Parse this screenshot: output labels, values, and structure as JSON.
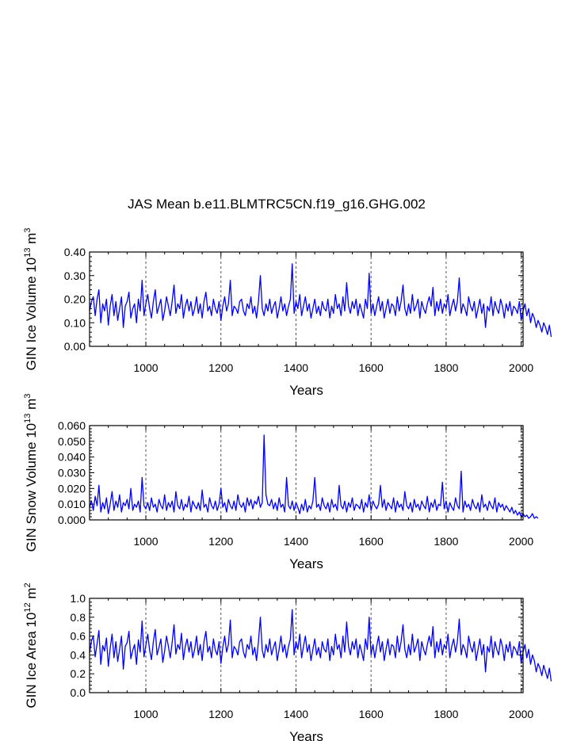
{
  "title": "JAS Mean b.e11.BLMTRC5CN.f19_g16.GHG.002",
  "chart_data": [
    {
      "type": "line",
      "title": "JAS Mean b.e11.BLMTRC5CN.f19_g16.GHG.002",
      "xlabel": "Years",
      "ylabel_main": "GIN Ice Volume 10",
      "ylabel_exp": "13",
      "ylabel_unit": " m",
      "ylabel_unit_exp": "3",
      "xlim": [
        850,
        2005
      ],
      "ylim": [
        0,
        0.4
      ],
      "x_ticks": [
        1000,
        1200,
        1400,
        1600,
        1800,
        2000
      ],
      "x_tick_labels": [
        "1000",
        "1200",
        "1400",
        "1600",
        "1800",
        "2000"
      ],
      "y_ticks": [
        0,
        0.1,
        0.2,
        0.3,
        0.4
      ],
      "y_tick_labels": [
        "0.00",
        "0.10",
        "0.20",
        "0.30",
        "0.40"
      ],
      "vlines": [
        1000,
        1200,
        1400,
        1600,
        1800,
        2000
      ],
      "color": "#0000ff",
      "series": [
        {
          "name": "GIN Ice Volume",
          "x_start": 850,
          "x_step": 5,
          "values": [
            0.15,
            0.19,
            0.21,
            0.13,
            0.2,
            0.24,
            0.1,
            0.18,
            0.15,
            0.2,
            0.09,
            0.17,
            0.22,
            0.13,
            0.19,
            0.11,
            0.16,
            0.21,
            0.08,
            0.17,
            0.19,
            0.23,
            0.12,
            0.16,
            0.18,
            0.1,
            0.2,
            0.15,
            0.28,
            0.13,
            0.18,
            0.22,
            0.16,
            0.12,
            0.19,
            0.24,
            0.14,
            0.17,
            0.2,
            0.11,
            0.15,
            0.21,
            0.17,
            0.13,
            0.19,
            0.26,
            0.14,
            0.18,
            0.16,
            0.22,
            0.12,
            0.17,
            0.2,
            0.15,
            0.19,
            0.13,
            0.16,
            0.21,
            0.14,
            0.18,
            0.12,
            0.19,
            0.23,
            0.15,
            0.17,
            0.13,
            0.2,
            0.16,
            0.14,
            0.19,
            0.11,
            0.17,
            0.21,
            0.15,
            0.18,
            0.28,
            0.13,
            0.17,
            0.16,
            0.14,
            0.19,
            0.2,
            0.15,
            0.13,
            0.18,
            0.16,
            0.21,
            0.14,
            0.17,
            0.12,
            0.19,
            0.3,
            0.16,
            0.13,
            0.18,
            0.15,
            0.2,
            0.14,
            0.17,
            0.19,
            0.12,
            0.16,
            0.21,
            0.15,
            0.18,
            0.13,
            0.17,
            0.2,
            0.35,
            0.14,
            0.19,
            0.16,
            0.22,
            0.13,
            0.17,
            0.21,
            0.15,
            0.18,
            0.12,
            0.16,
            0.2,
            0.14,
            0.17,
            0.13,
            0.19,
            0.16,
            0.15,
            0.2,
            0.12,
            0.17,
            0.14,
            0.22,
            0.16,
            0.18,
            0.13,
            0.21,
            0.15,
            0.27,
            0.17,
            0.14,
            0.19,
            0.16,
            0.2,
            0.13,
            0.18,
            0.15,
            0.12,
            0.2,
            0.16,
            0.31,
            0.14,
            0.18,
            0.13,
            0.17,
            0.21,
            0.15,
            0.19,
            0.12,
            0.16,
            0.2,
            0.14,
            0.18,
            0.17,
            0.13,
            0.21,
            0.15,
            0.19,
            0.26,
            0.16,
            0.13,
            0.18,
            0.14,
            0.22,
            0.15,
            0.17,
            0.2,
            0.12,
            0.19,
            0.16,
            0.14,
            0.18,
            0.21,
            0.17,
            0.25,
            0.13,
            0.19,
            0.15,
            0.2,
            0.14,
            0.18,
            0.16,
            0.22,
            0.13,
            0.17,
            0.2,
            0.15,
            0.19,
            0.29,
            0.14,
            0.18,
            0.16,
            0.13,
            0.21,
            0.17,
            0.15,
            0.19,
            0.12,
            0.16,
            0.2,
            0.14,
            0.18,
            0.08,
            0.17,
            0.15,
            0.21,
            0.13,
            0.19,
            0.16,
            0.14,
            0.2,
            0.17,
            0.12,
            0.18,
            0.15,
            0.19,
            0.13,
            0.17,
            0.16,
            0.14,
            0.19,
            0.11,
            0.15,
            0.18,
            0.13,
            0.16,
            0.1,
            0.14,
            0.12,
            0.08,
            0.11,
            0.09,
            0.06,
            0.1,
            0.08,
            0.05,
            0.09,
            0.04
          ]
        }
      ]
    },
    {
      "type": "line",
      "xlabel": "Years",
      "ylabel_main": "GIN Snow Volume 10",
      "ylabel_exp": "13",
      "ylabel_unit": " m",
      "ylabel_unit_exp": "3",
      "xlim": [
        850,
        2005
      ],
      "ylim": [
        0,
        0.06
      ],
      "x_ticks": [
        1000,
        1200,
        1400,
        1600,
        1800,
        2000
      ],
      "x_tick_labels": [
        "1000",
        "1200",
        "1400",
        "1600",
        "1800",
        "2000"
      ],
      "y_ticks": [
        0,
        0.01,
        0.02,
        0.03,
        0.04,
        0.05,
        0.06
      ],
      "y_tick_labels": [
        "0.000",
        "0.010",
        "0.020",
        "0.030",
        "0.040",
        "0.050",
        "0.060"
      ],
      "vlines": [
        1000,
        1200,
        1400,
        1600,
        1800,
        2000
      ],
      "color": "#0000ff",
      "series": [
        {
          "name": "GIN Snow Volume",
          "x_start": 850,
          "x_step": 5,
          "values": [
            0.008,
            0.012,
            0.006,
            0.015,
            0.009,
            0.022,
            0.005,
            0.011,
            0.007,
            0.014,
            0.004,
            0.01,
            0.018,
            0.006,
            0.012,
            0.008,
            0.016,
            0.005,
            0.011,
            0.009,
            0.013,
            0.007,
            0.02,
            0.006,
            0.01,
            0.008,
            0.012,
            0.005,
            0.027,
            0.009,
            0.007,
            0.011,
            0.006,
            0.014,
            0.008,
            0.01,
            0.005,
            0.013,
            0.009,
            0.007,
            0.016,
            0.006,
            0.011,
            0.008,
            0.012,
            0.005,
            0.018,
            0.009,
            0.007,
            0.013,
            0.006,
            0.01,
            0.008,
            0.015,
            0.005,
            0.012,
            0.009,
            0.007,
            0.011,
            0.006,
            0.019,
            0.008,
            0.01,
            0.005,
            0.014,
            0.009,
            0.007,
            0.012,
            0.006,
            0.01,
            0.02,
            0.008,
            0.011,
            0.005,
            0.013,
            0.009,
            0.007,
            0.012,
            0.006,
            0.016,
            0.01,
            0.008,
            0.011,
            0.005,
            0.014,
            0.009,
            0.013,
            0.007,
            0.012,
            0.01,
            0.015,
            0.008,
            0.011,
            0.054,
            0.016,
            0.01,
            0.009,
            0.013,
            0.007,
            0.011,
            0.006,
            0.014,
            0.008,
            0.01,
            0.005,
            0.027,
            0.009,
            0.007,
            0.012,
            0.006,
            0.011,
            0.008,
            0.004,
            0.01,
            0.006,
            0.013,
            0.005,
            0.009,
            0.007,
            0.012,
            0.027,
            0.008,
            0.01,
            0.006,
            0.014,
            0.009,
            0.007,
            0.011,
            0.005,
            0.013,
            0.008,
            0.01,
            0.006,
            0.022,
            0.009,
            0.007,
            0.012,
            0.005,
            0.011,
            0.008,
            0.014,
            0.006,
            0.01,
            0.009,
            0.007,
            0.013,
            0.005,
            0.011,
            0.008,
            0.016,
            0.006,
            0.012,
            0.009,
            0.007,
            0.01,
            0.022,
            0.008,
            0.013,
            0.006,
            0.011,
            0.009,
            0.007,
            0.014,
            0.005,
            0.012,
            0.008,
            0.01,
            0.006,
            0.018,
            0.009,
            0.007,
            0.011,
            0.005,
            0.013,
            0.008,
            0.01,
            0.006,
            0.012,
            0.009,
            0.007,
            0.015,
            0.005,
            0.011,
            0.008,
            0.013,
            0.006,
            0.01,
            0.009,
            0.024,
            0.007,
            0.012,
            0.005,
            0.011,
            0.008,
            0.006,
            0.014,
            0.009,
            0.007,
            0.031,
            0.005,
            0.012,
            0.008,
            0.01,
            0.006,
            0.013,
            0.009,
            0.007,
            0.011,
            0.005,
            0.016,
            0.008,
            0.01,
            0.006,
            0.012,
            0.009,
            0.007,
            0.014,
            0.005,
            0.011,
            0.008,
            0.01,
            0.006,
            0.009,
            0.007,
            0.005,
            0.008,
            0.004,
            0.006,
            0.003,
            0.005,
            0.002,
            0.004,
            0.002,
            0.003,
            0.001,
            0.002,
            0.004,
            0.001,
            0.002,
            0.001
          ]
        }
      ]
    },
    {
      "type": "line",
      "xlabel": "Years",
      "ylabel_main": "GIN Ice Area 10",
      "ylabel_exp": "12",
      "ylabel_unit": " m",
      "ylabel_unit_exp": "2",
      "xlim": [
        850,
        2005
      ],
      "ylim": [
        0,
        1.0
      ],
      "x_ticks": [
        1000,
        1200,
        1400,
        1600,
        1800,
        2000
      ],
      "x_tick_labels": [
        "1000",
        "1200",
        "1400",
        "1600",
        "1800",
        "2000"
      ],
      "y_ticks": [
        0,
        0.2,
        0.4,
        0.6,
        0.8,
        1.0
      ],
      "y_tick_labels": [
        "0.0",
        "0.2",
        "0.4",
        "0.6",
        "0.8",
        "1.0"
      ],
      "vlines": [
        1000,
        1200,
        1400,
        1600,
        1800,
        2000
      ],
      "color": "#0000ff",
      "series": [
        {
          "name": "GIN Ice Area",
          "x_start": 850,
          "x_step": 5,
          "values": [
            0.42,
            0.55,
            0.6,
            0.38,
            0.52,
            0.66,
            0.3,
            0.5,
            0.44,
            0.58,
            0.28,
            0.47,
            0.62,
            0.37,
            0.54,
            0.33,
            0.46,
            0.6,
            0.25,
            0.49,
            0.53,
            0.65,
            0.36,
            0.45,
            0.51,
            0.3,
            0.56,
            0.43,
            0.76,
            0.38,
            0.5,
            0.62,
            0.45,
            0.35,
            0.54,
            0.67,
            0.4,
            0.48,
            0.57,
            0.32,
            0.44,
            0.6,
            0.49,
            0.37,
            0.53,
            0.72,
            0.41,
            0.51,
            0.46,
            0.63,
            0.35,
            0.49,
            0.57,
            0.43,
            0.54,
            0.37,
            0.46,
            0.6,
            0.4,
            0.51,
            0.34,
            0.54,
            0.65,
            0.43,
            0.49,
            0.37,
            0.57,
            0.45,
            0.4,
            0.54,
            0.31,
            0.48,
            0.6,
            0.43,
            0.51,
            0.77,
            0.37,
            0.49,
            0.46,
            0.4,
            0.54,
            0.57,
            0.43,
            0.37,
            0.51,
            0.46,
            0.6,
            0.4,
            0.48,
            0.34,
            0.54,
            0.8,
            0.45,
            0.37,
            0.51,
            0.43,
            0.57,
            0.4,
            0.48,
            0.54,
            0.34,
            0.46,
            0.6,
            0.43,
            0.51,
            0.37,
            0.49,
            0.57,
            0.88,
            0.4,
            0.54,
            0.46,
            0.62,
            0.37,
            0.49,
            0.6,
            0.43,
            0.51,
            0.34,
            0.46,
            0.57,
            0.4,
            0.48,
            0.37,
            0.54,
            0.46,
            0.43,
            0.57,
            0.34,
            0.49,
            0.4,
            0.62,
            0.46,
            0.51,
            0.37,
            0.6,
            0.43,
            0.75,
            0.49,
            0.4,
            0.54,
            0.46,
            0.57,
            0.37,
            0.51,
            0.43,
            0.34,
            0.57,
            0.46,
            0.8,
            0.4,
            0.51,
            0.37,
            0.49,
            0.6,
            0.43,
            0.54,
            0.34,
            0.46,
            0.57,
            0.4,
            0.51,
            0.49,
            0.37,
            0.6,
            0.43,
            0.54,
            0.72,
            0.46,
            0.37,
            0.51,
            0.4,
            0.62,
            0.43,
            0.49,
            0.57,
            0.34,
            0.54,
            0.46,
            0.4,
            0.51,
            0.6,
            0.49,
            0.7,
            0.37,
            0.54,
            0.43,
            0.57,
            0.4,
            0.51,
            0.46,
            0.62,
            0.37,
            0.49,
            0.57,
            0.43,
            0.54,
            0.78,
            0.4,
            0.51,
            0.46,
            0.37,
            0.6,
            0.49,
            0.43,
            0.54,
            0.34,
            0.46,
            0.57,
            0.4,
            0.51,
            0.22,
            0.49,
            0.43,
            0.6,
            0.37,
            0.54,
            0.46,
            0.4,
            0.57,
            0.49,
            0.34,
            0.51,
            0.43,
            0.54,
            0.37,
            0.49,
            0.46,
            0.4,
            0.54,
            0.31,
            0.43,
            0.51,
            0.37,
            0.46,
            0.3,
            0.4,
            0.34,
            0.22,
            0.31,
            0.26,
            0.18,
            0.29,
            0.22,
            0.15,
            0.26,
            0.12
          ]
        }
      ]
    }
  ]
}
